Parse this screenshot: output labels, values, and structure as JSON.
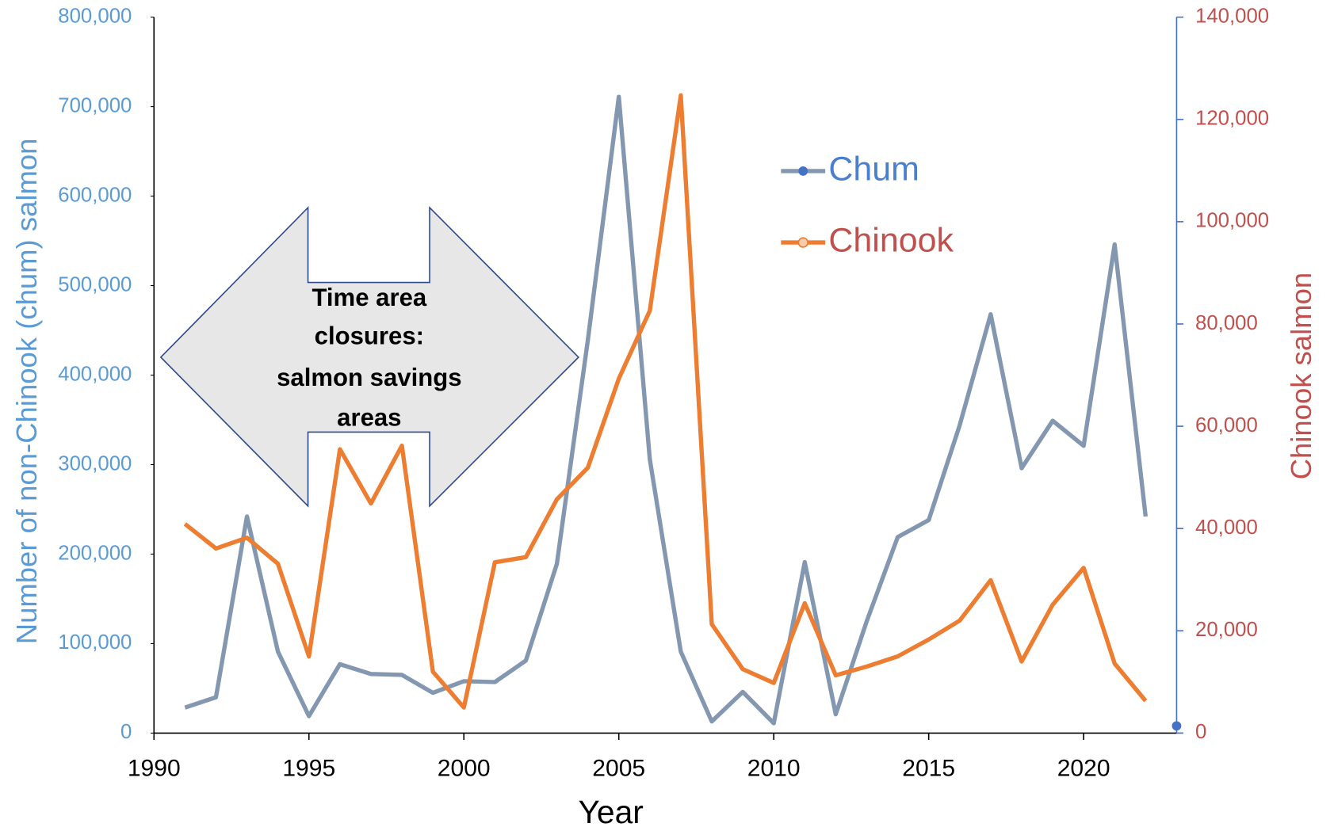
{
  "chart_data": {
    "type": "line",
    "x_label": "Year",
    "y_label": "Number of non-Chinook (chum) salmon",
    "y2_label": "Chinook salmon",
    "x": [
      1991,
      1992,
      1993,
      1994,
      1995,
      1996,
      1997,
      1998,
      1999,
      2000,
      2001,
      2002,
      2003,
      2004,
      2005,
      2006,
      2007,
      2008,
      2009,
      2010,
      2011,
      2012,
      2013,
      2014,
      2015,
      2016,
      2017,
      2018,
      2019,
      2020,
      2021,
      2022
    ],
    "series": [
      {
        "name": "Chum",
        "color": "#8497b0",
        "marker_color": "#4472c4",
        "label_color": "#4a7fd0",
        "values": [
          28500,
          40000,
          242000,
          91000,
          19000,
          77000,
          66000,
          65000,
          45000,
          58000,
          57000,
          81000,
          189000,
          439000,
          711000,
          306000,
          91000,
          13000,
          46000,
          11000,
          191000,
          21000,
          125000,
          219000,
          238000,
          344000,
          468000,
          296000,
          349000,
          321000,
          546000,
          242000
        ]
      },
      {
        "name": "Chinook",
        "color": "#ed7d31",
        "marker_color": "#f8cbad",
        "label_color": "#c0504d",
        "axis": "y2",
        "values": [
          40900,
          36100,
          38200,
          33100,
          15000,
          55500,
          44900,
          56200,
          12000,
          5000,
          33400,
          34400,
          45700,
          51900,
          69300,
          82600,
          124700,
          21300,
          12500,
          9800,
          25400,
          11300,
          13000,
          15000,
          18300,
          22000,
          29900,
          14000,
          25100,
          32300,
          13600,
          6300
        ]
      }
    ],
    "points": [
      {
        "x": 2023,
        "y": 8000,
        "color": "#4472c4"
      }
    ],
    "annotation": [
      "Time area",
      "closures:",
      "salmon savings",
      "areas"
    ],
    "xlim": [
      1990,
      2023
    ],
    "xticks": [
      1990,
      1995,
      2000,
      2005,
      2010,
      2015,
      2020
    ],
    "ylim": [
      0,
      800000
    ],
    "yticks": [
      0,
      {
        "value": 100000,
        "label": "100,000"
      },
      {
        "value": 200000,
        "label": "200,000"
      },
      {
        "value": 300000,
        "label": "300,000"
      },
      {
        "value": 400000,
        "label": "400,000"
      },
      {
        "value": 500000,
        "label": "500,000"
      },
      {
        "value": 600000,
        "label": "600,000"
      },
      {
        "value": 700000,
        "label": "700,000"
      },
      {
        "value": 800000,
        "label": "800,000"
      }
    ],
    "y2lim": [
      0,
      140000
    ],
    "y2ticks": [
      0,
      {
        "value": 20000,
        "label": "20,000"
      },
      {
        "value": 40000,
        "label": "40,000"
      },
      {
        "value": 60000,
        "label": "60,000"
      },
      {
        "value": 80000,
        "label": "80,000"
      },
      {
        "value": 100000,
        "label": "100,000"
      },
      {
        "value": 120000,
        "label": "120,000"
      },
      {
        "value": 140000,
        "label": "140,000"
      }
    ],
    "y_color": "#5b9bd5",
    "y2_color": "#c0504d"
  }
}
